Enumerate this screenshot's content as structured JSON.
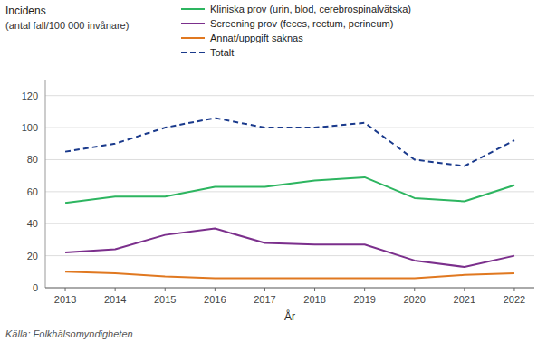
{
  "chart_data": {
    "type": "line",
    "ylabel": "Incidens",
    "subtitle": "(antal fall/100 000 invånare)",
    "xlabel": "År",
    "annotations": [
      "Källa: Folkhälsomyndigheten"
    ],
    "x": [
      2013,
      2014,
      2015,
      2016,
      2017,
      2018,
      2019,
      2020,
      2021,
      2022
    ],
    "xlim": [
      2012.6,
      2022.4
    ],
    "xticks": [
      2013,
      2014,
      2015,
      2016,
      2017,
      2018,
      2019,
      2020,
      2021,
      2022
    ],
    "ylim": [
      0,
      130
    ],
    "yticks": [
      0,
      20,
      40,
      60,
      80,
      100,
      120
    ],
    "grid": true,
    "legend": "top",
    "series": [
      {
        "name": "Kliniska prov (urin, blod, cerebrospinalvätska)",
        "color": "#2db560",
        "line_style": "solid",
        "values": [
          53,
          57,
          57,
          63,
          63,
          67,
          69,
          56,
          54,
          64
        ]
      },
      {
        "name": "Screening prov (feces, rectum, perineum)",
        "color": "#7b2f8c",
        "line_style": "solid",
        "values": [
          22,
          24,
          33,
          37,
          28,
          27,
          27,
          17,
          13,
          20
        ]
      },
      {
        "name": "Annat/uppgift saknas",
        "color": "#e07820",
        "line_style": "solid",
        "values": [
          10,
          9,
          7,
          6,
          6,
          6,
          6,
          6,
          8,
          9
        ]
      },
      {
        "name": "Totalt",
        "color": "#1a3a8c",
        "line_style": "dashed",
        "values": [
          85,
          90,
          100,
          106,
          100,
          100,
          103,
          80,
          76,
          92
        ]
      }
    ]
  }
}
